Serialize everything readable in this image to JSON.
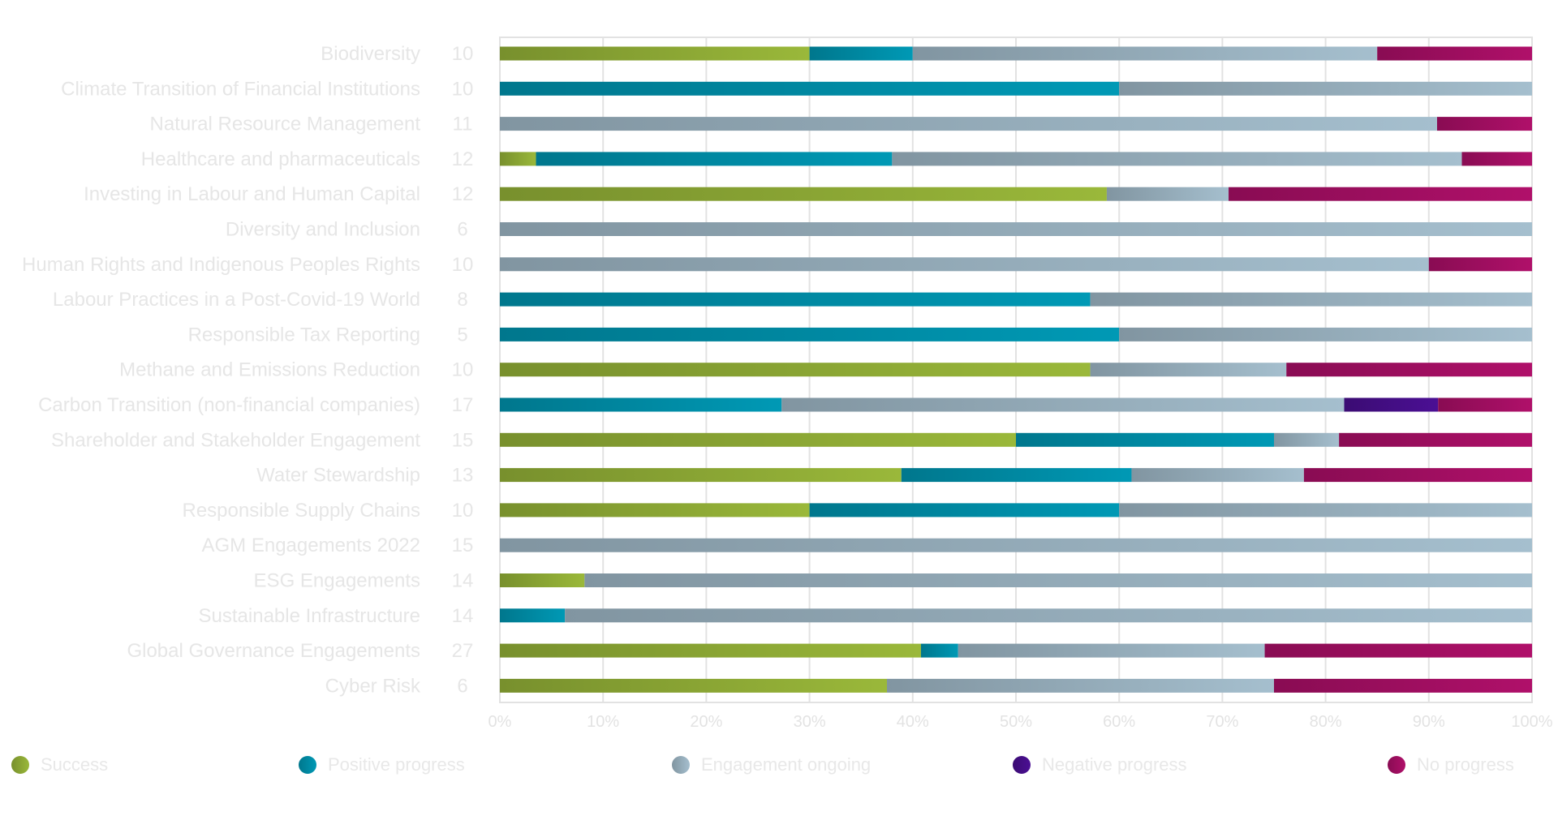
{
  "chart_data": {
    "type": "bar",
    "orientation": "horizontal",
    "stacked": true,
    "percent": true,
    "categories": [
      "Biodiversity",
      "Climate Transition of Financial Institutions",
      "Natural Resource Management",
      "Healthcare and pharmaceuticals",
      "Investing in Labour and Human Capital",
      "Diversity and Inclusion",
      "Human Rights and Indigenous Peoples Rights",
      "Labour Practices in a Post-Covid-19 World",
      "Responsible Tax Reporting",
      "Methane and Emissions Reduction",
      "Carbon Transition (non-financial companies)",
      "Shareholder and Stakeholder Engagement",
      "Water Stewardship",
      "Responsible Supply Chains",
      "AGM Engagements 2022",
      "ESG Engagements",
      "Sustainable Infrastructure",
      "Global Governance Engagements",
      "Cyber Risk"
    ],
    "counts": [
      "10",
      "10",
      "11",
      "12",
      "12",
      "6",
      "10",
      "8",
      "5",
      "10",
      "17",
      "15",
      "13",
      "10",
      "15",
      "14",
      "14",
      "27",
      "6"
    ],
    "series": [
      {
        "name": "Success",
        "color": "#9ab83a",
        "values": [
          30,
          0,
          0,
          3.5,
          58.8,
          0,
          0,
          0,
          0,
          57.2,
          0,
          50,
          38.9,
          30,
          0,
          8.2,
          0,
          40.8,
          37.5
        ]
      },
      {
        "name": "Positive progress",
        "color": "#0099b5",
        "values": [
          10,
          60,
          0,
          34.5,
          0,
          0,
          0,
          57.2,
          60,
          0,
          27.3,
          25,
          22.3,
          30,
          0,
          0,
          6.3,
          3.6,
          0
        ]
      },
      {
        "name": "Engagement ongoing",
        "color": "#a5bfce",
        "values": [
          45,
          40,
          90.8,
          55.2,
          11.8,
          100,
          90,
          42.8,
          40,
          19,
          54.5,
          6.3,
          16.7,
          40,
          100,
          91.8,
          93.7,
          29.7,
          37.5
        ]
      },
      {
        "name": "Negative progress",
        "color": "#4b0f94",
        "values": [
          0,
          0,
          0,
          0,
          0,
          0,
          0,
          0,
          0,
          0,
          9.1,
          0,
          0,
          0,
          0,
          0,
          0,
          0,
          0
        ]
      },
      {
        "name": "No progress",
        "color": "#b0106a",
        "values": [
          15,
          0,
          9.2,
          6.8,
          29.4,
          0,
          10,
          0,
          0,
          23.8,
          9.1,
          18.7,
          22.1,
          0,
          0,
          0,
          0,
          25.9,
          25
        ]
      }
    ],
    "xlim": [
      0,
      100
    ],
    "x_ticks": [
      "0%",
      "10%",
      "20%",
      "30%",
      "40%",
      "50%",
      "60%",
      "70%",
      "80%",
      "90%",
      "100%"
    ],
    "grid": true,
    "legend_position": "bottom"
  }
}
